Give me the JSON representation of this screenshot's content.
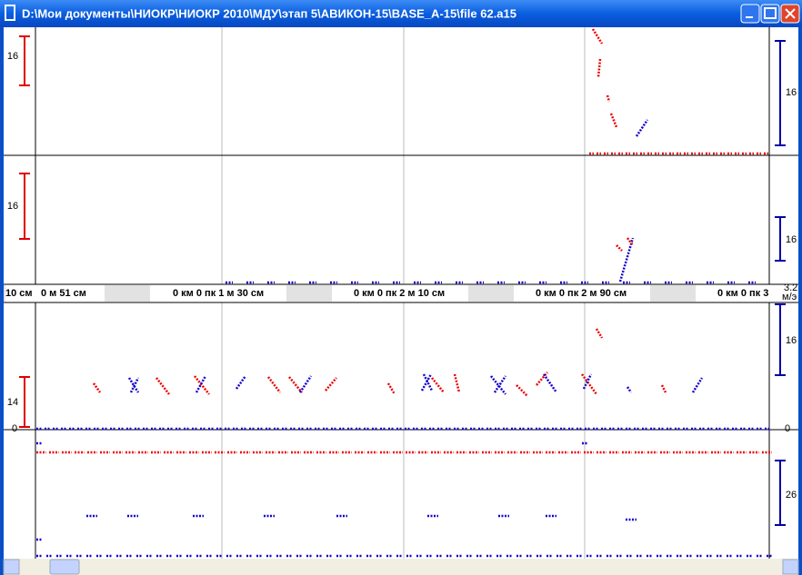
{
  "window": {
    "title": "D:\\Мои документы\\НИОКР\\НИОКР 2010\\МДУ\\этап 5\\АВИКОН-15\\BASE_A-15\\file 62.a15"
  },
  "ruler": [
    "10 см",
    "0 м 51 см",
    "0 км 0 пк 1 м 30 см",
    "0 км 0 пк 2 м 10 см",
    "0 км 0 пк 2 м 90 см",
    "0 км 0 пк 3"
  ],
  "speed": {
    "value": "3.2",
    "unit": "м/э"
  },
  "scales": {
    "left": [
      "16",
      "16",
      "14",
      "0"
    ],
    "right": [
      "16",
      "16",
      "16",
      "0",
      "26"
    ]
  }
}
